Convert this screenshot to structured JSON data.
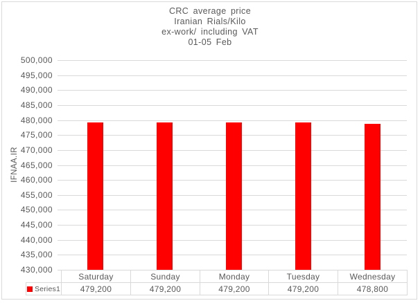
{
  "colors": {
    "bar": "#FF0000",
    "gridline": "#D9D9D9",
    "table_border": "#D9D9D9",
    "text": "#595959",
    "background": "#FFFFFF",
    "outer_border": "#D9D9D9"
  },
  "legend": {
    "label": "Series1",
    "swatch_color": "#FF0000"
  },
  "chart_data": {
    "type": "bar",
    "title": "CRC average price\nIranian Rials/Kilo\nex-work/ including VAT\n01-05 Feb",
    "title_lines": [
      "CRC average price",
      "Iranian Rials/Kilo",
      "ex-work/ including VAT",
      "01-05 Feb"
    ],
    "categories": [
      "Saturday",
      "Sunday",
      "Monday",
      "Tuesday",
      "Wednesday"
    ],
    "series": [
      {
        "name": "Series1",
        "color": "#FF0000",
        "values": [
          479200,
          479200,
          479200,
          479200,
          478800
        ]
      }
    ],
    "data_table_values_display": [
      "479,200",
      "479,200",
      "479,200",
      "479,200",
      "478,800"
    ],
    "xlabel": "",
    "ylabel": "IFNAA.IR",
    "ylim": [
      430000,
      500000
    ],
    "ytick_step": 5000,
    "ytick_labels": [
      "430,000",
      "435,000",
      "440,000",
      "445,000",
      "450,000",
      "455,000",
      "460,000",
      "465,000",
      "470,000",
      "475,000",
      "480,000",
      "485,000",
      "490,000",
      "495,000",
      "500,000"
    ],
    "grid": true,
    "legend_position": "bottom-left",
    "data_table_shown": true
  }
}
